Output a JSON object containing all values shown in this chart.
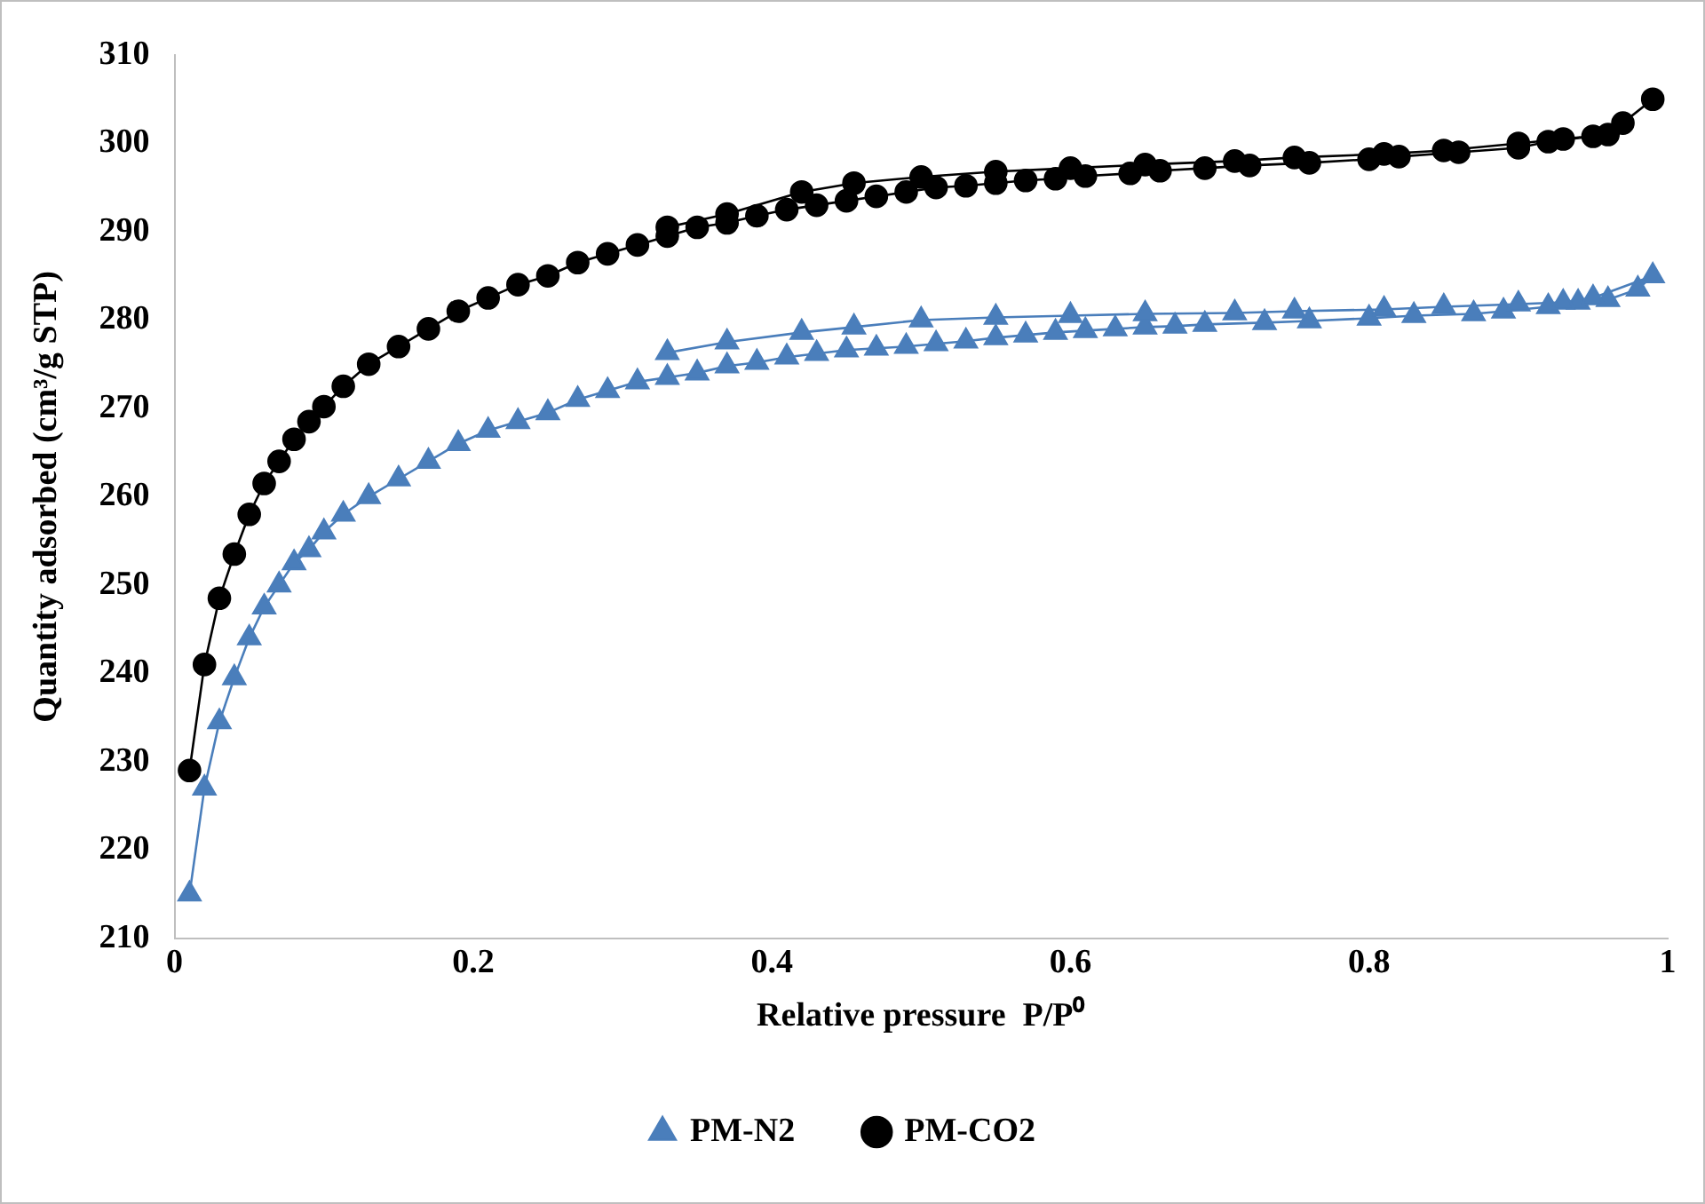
{
  "chart_data": {
    "type": "line",
    "xlabel": "Relative pressure  P/P⁰",
    "ylabel": "Quantity adsorbed (cm³/g STP)",
    "xlim": [
      0,
      1
    ],
    "xticks": [
      0,
      0.2,
      0.4,
      0.6,
      0.8,
      1
    ],
    "ylim": [
      210,
      310
    ],
    "yticks": [
      210,
      220,
      230,
      240,
      250,
      260,
      270,
      280,
      290,
      300,
      310
    ],
    "grid": false,
    "legend": "bottom",
    "line_style": "solid",
    "series": [
      {
        "name": "PM-N2",
        "color": "#4a7ebb",
        "marker": "triangle",
        "x": [
          0.01,
          0.02,
          0.03,
          0.04,
          0.05,
          0.06,
          0.07,
          0.08,
          0.09,
          0.1,
          0.113,
          0.13,
          0.15,
          0.17,
          0.19,
          0.21,
          0.23,
          0.25,
          0.27,
          0.29,
          0.31,
          0.33,
          0.35,
          0.37,
          0.39,
          0.41,
          0.43,
          0.45,
          0.47,
          0.49,
          0.51,
          0.53,
          0.55,
          0.57,
          0.59,
          0.61,
          0.63,
          0.65,
          0.67,
          0.69,
          0.73,
          0.76,
          0.8,
          0.83,
          0.87,
          0.89,
          0.92,
          0.94,
          0.96,
          0.98,
          0.99,
          0.95,
          0.93,
          0.9,
          0.85,
          0.81,
          0.75,
          0.71,
          0.65,
          0.6,
          0.55,
          0.5,
          0.455,
          0.42,
          0.37,
          0.33
        ],
        "values": [
          215,
          227,
          234.5,
          239.5,
          244,
          247.5,
          250,
          252.5,
          254,
          256,
          258,
          260,
          262,
          264,
          266,
          267.5,
          268.5,
          269.5,
          271,
          272,
          273,
          273.5,
          274,
          274.8,
          275.2,
          275.8,
          276.2,
          276.6,
          276.8,
          277,
          277.3,
          277.6,
          278,
          278.3,
          278.6,
          278.8,
          279,
          279.2,
          279.3,
          279.5,
          279.7,
          279.9,
          280.2,
          280.5,
          280.7,
          281,
          281.5,
          282,
          282.3,
          283.5,
          285,
          282.5,
          282,
          281.8,
          281.5,
          281.2,
          281,
          280.8,
          280.7,
          280.5,
          280.3,
          280,
          279.2,
          278.6,
          277.5,
          276.3
        ]
      },
      {
        "name": "PM-CO2",
        "color": "#000000",
        "marker": "circle",
        "x": [
          0.01,
          0.02,
          0.03,
          0.04,
          0.05,
          0.06,
          0.07,
          0.08,
          0.09,
          0.1,
          0.113,
          0.13,
          0.15,
          0.17,
          0.19,
          0.21,
          0.23,
          0.25,
          0.27,
          0.29,
          0.31,
          0.33,
          0.35,
          0.37,
          0.39,
          0.41,
          0.43,
          0.45,
          0.47,
          0.49,
          0.51,
          0.53,
          0.55,
          0.57,
          0.59,
          0.61,
          0.64,
          0.66,
          0.69,
          0.72,
          0.76,
          0.8,
          0.82,
          0.86,
          0.9,
          0.92,
          0.95,
          0.97,
          0.99,
          0.96,
          0.93,
          0.9,
          0.85,
          0.81,
          0.75,
          0.71,
          0.65,
          0.6,
          0.55,
          0.5,
          0.455,
          0.42,
          0.37,
          0.33
        ],
        "values": [
          229,
          241,
          248.5,
          253.5,
          258,
          261.5,
          264,
          266.5,
          268.5,
          270.2,
          272.5,
          275,
          277,
          279,
          281,
          282.5,
          284,
          285,
          286.5,
          287.5,
          288.5,
          289.5,
          290.5,
          291,
          291.8,
          292.5,
          293,
          293.5,
          294,
          294.5,
          295,
          295.2,
          295.5,
          295.8,
          296,
          296.3,
          296.6,
          296.9,
          297.2,
          297.5,
          297.8,
          298.2,
          298.5,
          299,
          299.5,
          300.2,
          300.8,
          302.3,
          305,
          301,
          300.5,
          300,
          299.2,
          298.8,
          298.4,
          298,
          297.6,
          297.2,
          296.8,
          296.2,
          295.5,
          294.5,
          292,
          290.5
        ]
      }
    ]
  }
}
